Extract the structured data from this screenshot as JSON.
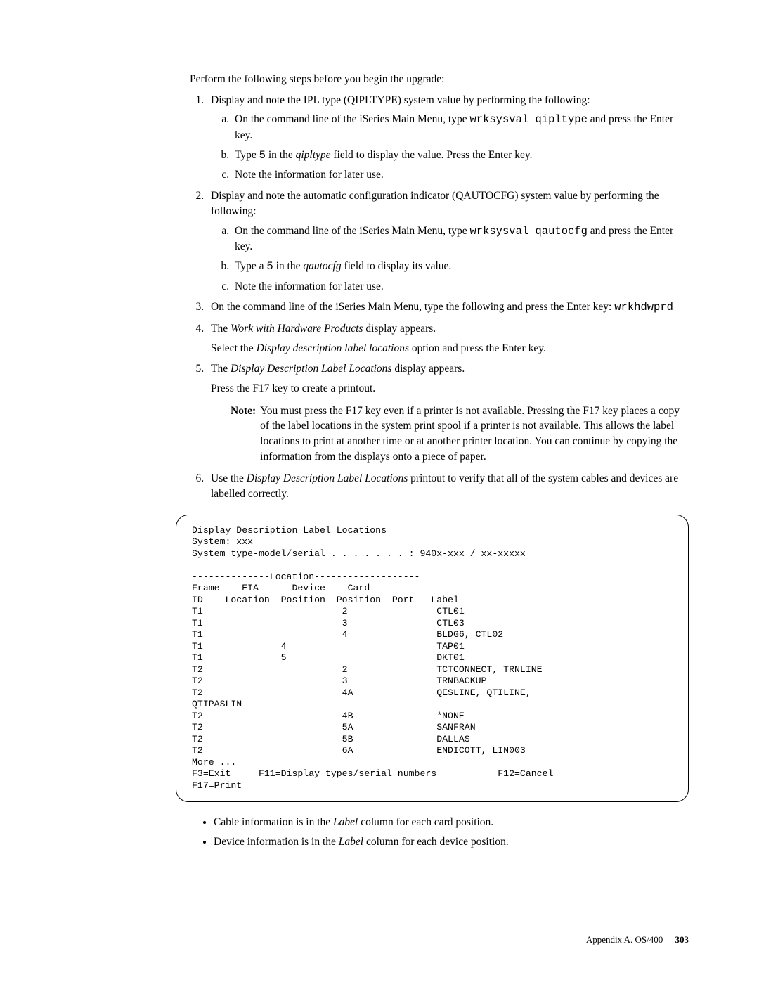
{
  "intro": "Perform the following steps before you begin the upgrade:",
  "steps": {
    "s1": {
      "text_a": "Display and note the IPL type (QIPLTYPE) system value by performing the following:",
      "a": {
        "pre": "On the command line of the iSeries Main Menu, type ",
        "code": "wrksysval qipltype",
        "post": " and press the Enter key."
      },
      "b": {
        "pre": "Type ",
        "code": "5",
        "mid": " in the ",
        "ital": "qipltype",
        "post": " field to display the value. Press the Enter key."
      },
      "c": "Note the information for later use."
    },
    "s2": {
      "text_a": "Display and note the automatic configuration indicator (QAUTOCFG) system value by performing the following:",
      "a": {
        "pre": "On the command line of the iSeries Main Menu, type ",
        "code": "wrksysval qautocfg",
        "post": " and press the Enter key."
      },
      "b": {
        "pre": "Type a ",
        "code": "5",
        "mid": " in the ",
        "ital": "qautocfg",
        "post": " field to display its value."
      },
      "c": "Note the information for later use."
    },
    "s3": {
      "pre": "On the command line of the iSeries Main Menu, type the following and press the Enter key: ",
      "code": "wrkhdwprd"
    },
    "s4": {
      "l1a": "The ",
      "l1i": "Work with Hardware Products",
      "l1b": " display appears.",
      "l2a": "Select the ",
      "l2i": "Display description label locations",
      "l2b": " option and press the Enter key."
    },
    "s5": {
      "l1a": "The ",
      "l1i": "Display Description Label Locations",
      "l1b": " display appears.",
      "l2": "Press the F17 key to create a printout.",
      "note_label": "Note:",
      "note": "You must press the F17 key even if a printer is not available. Pressing the F17 key places a copy of the label locations in the system print spool if a printer is not available. This allows the label locations to print at another time or at another printer location. You can continue by copying the information from the displays onto a piece of paper."
    },
    "s6": {
      "pre": "Use the ",
      "ital": "Display Description Label Locations",
      "post": " printout to verify that all of the system cables and devices are labelled correctly."
    }
  },
  "terminal": "Display Description Label Locations\nSystem: xxx\nSystem type-model/serial . . . . . . . : 940x-xxx / xx-xxxxx\n\n--------------Location-------------------\nFrame    EIA      Device    Card\nID    Location  Position  Position  Port   Label\nT1                         2                CTL01\nT1                         3                CTL03\nT1                         4                BLDG6, CTL02\nT1              4                           TAP01\nT1              5                           DKT01\nT2                         2                TCTCONNECT, TRNLINE\nT2                         3                TRNBACKUP\nT2                         4A               QESLINE, QTILINE,\nQTIPASLIN\nT2                         4B               *NONE\nT2                         5A               SANFRAN\nT2                         5B               DALLAS\nT2                         6A               ENDICOTT, LIN003\nMore ...\nF3=Exit     F11=Display types/serial numbers           F12=Cancel\nF17=Print",
  "bullets": {
    "b1a": "Cable information is in the ",
    "b1i": "Label",
    "b1b": " column for each card position.",
    "b2a": "Device information is in the ",
    "b2i": "Label",
    "b2b": " column for each device position."
  },
  "footer": {
    "text": "Appendix A. OS/400",
    "page": "303"
  }
}
